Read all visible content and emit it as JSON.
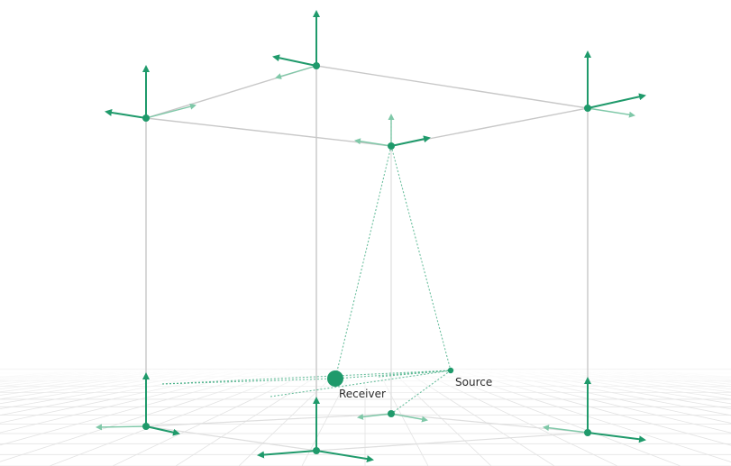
{
  "labels": {
    "receiver": "Receiver",
    "source": "Source"
  },
  "colors": {
    "accent": "#1f9a6b",
    "accent_light": "#7fc8a8",
    "frame": "#c8c8c8",
    "grid": "#e3e3e3",
    "text": "#2b2b2b",
    "background": "#ffffff"
  }
}
